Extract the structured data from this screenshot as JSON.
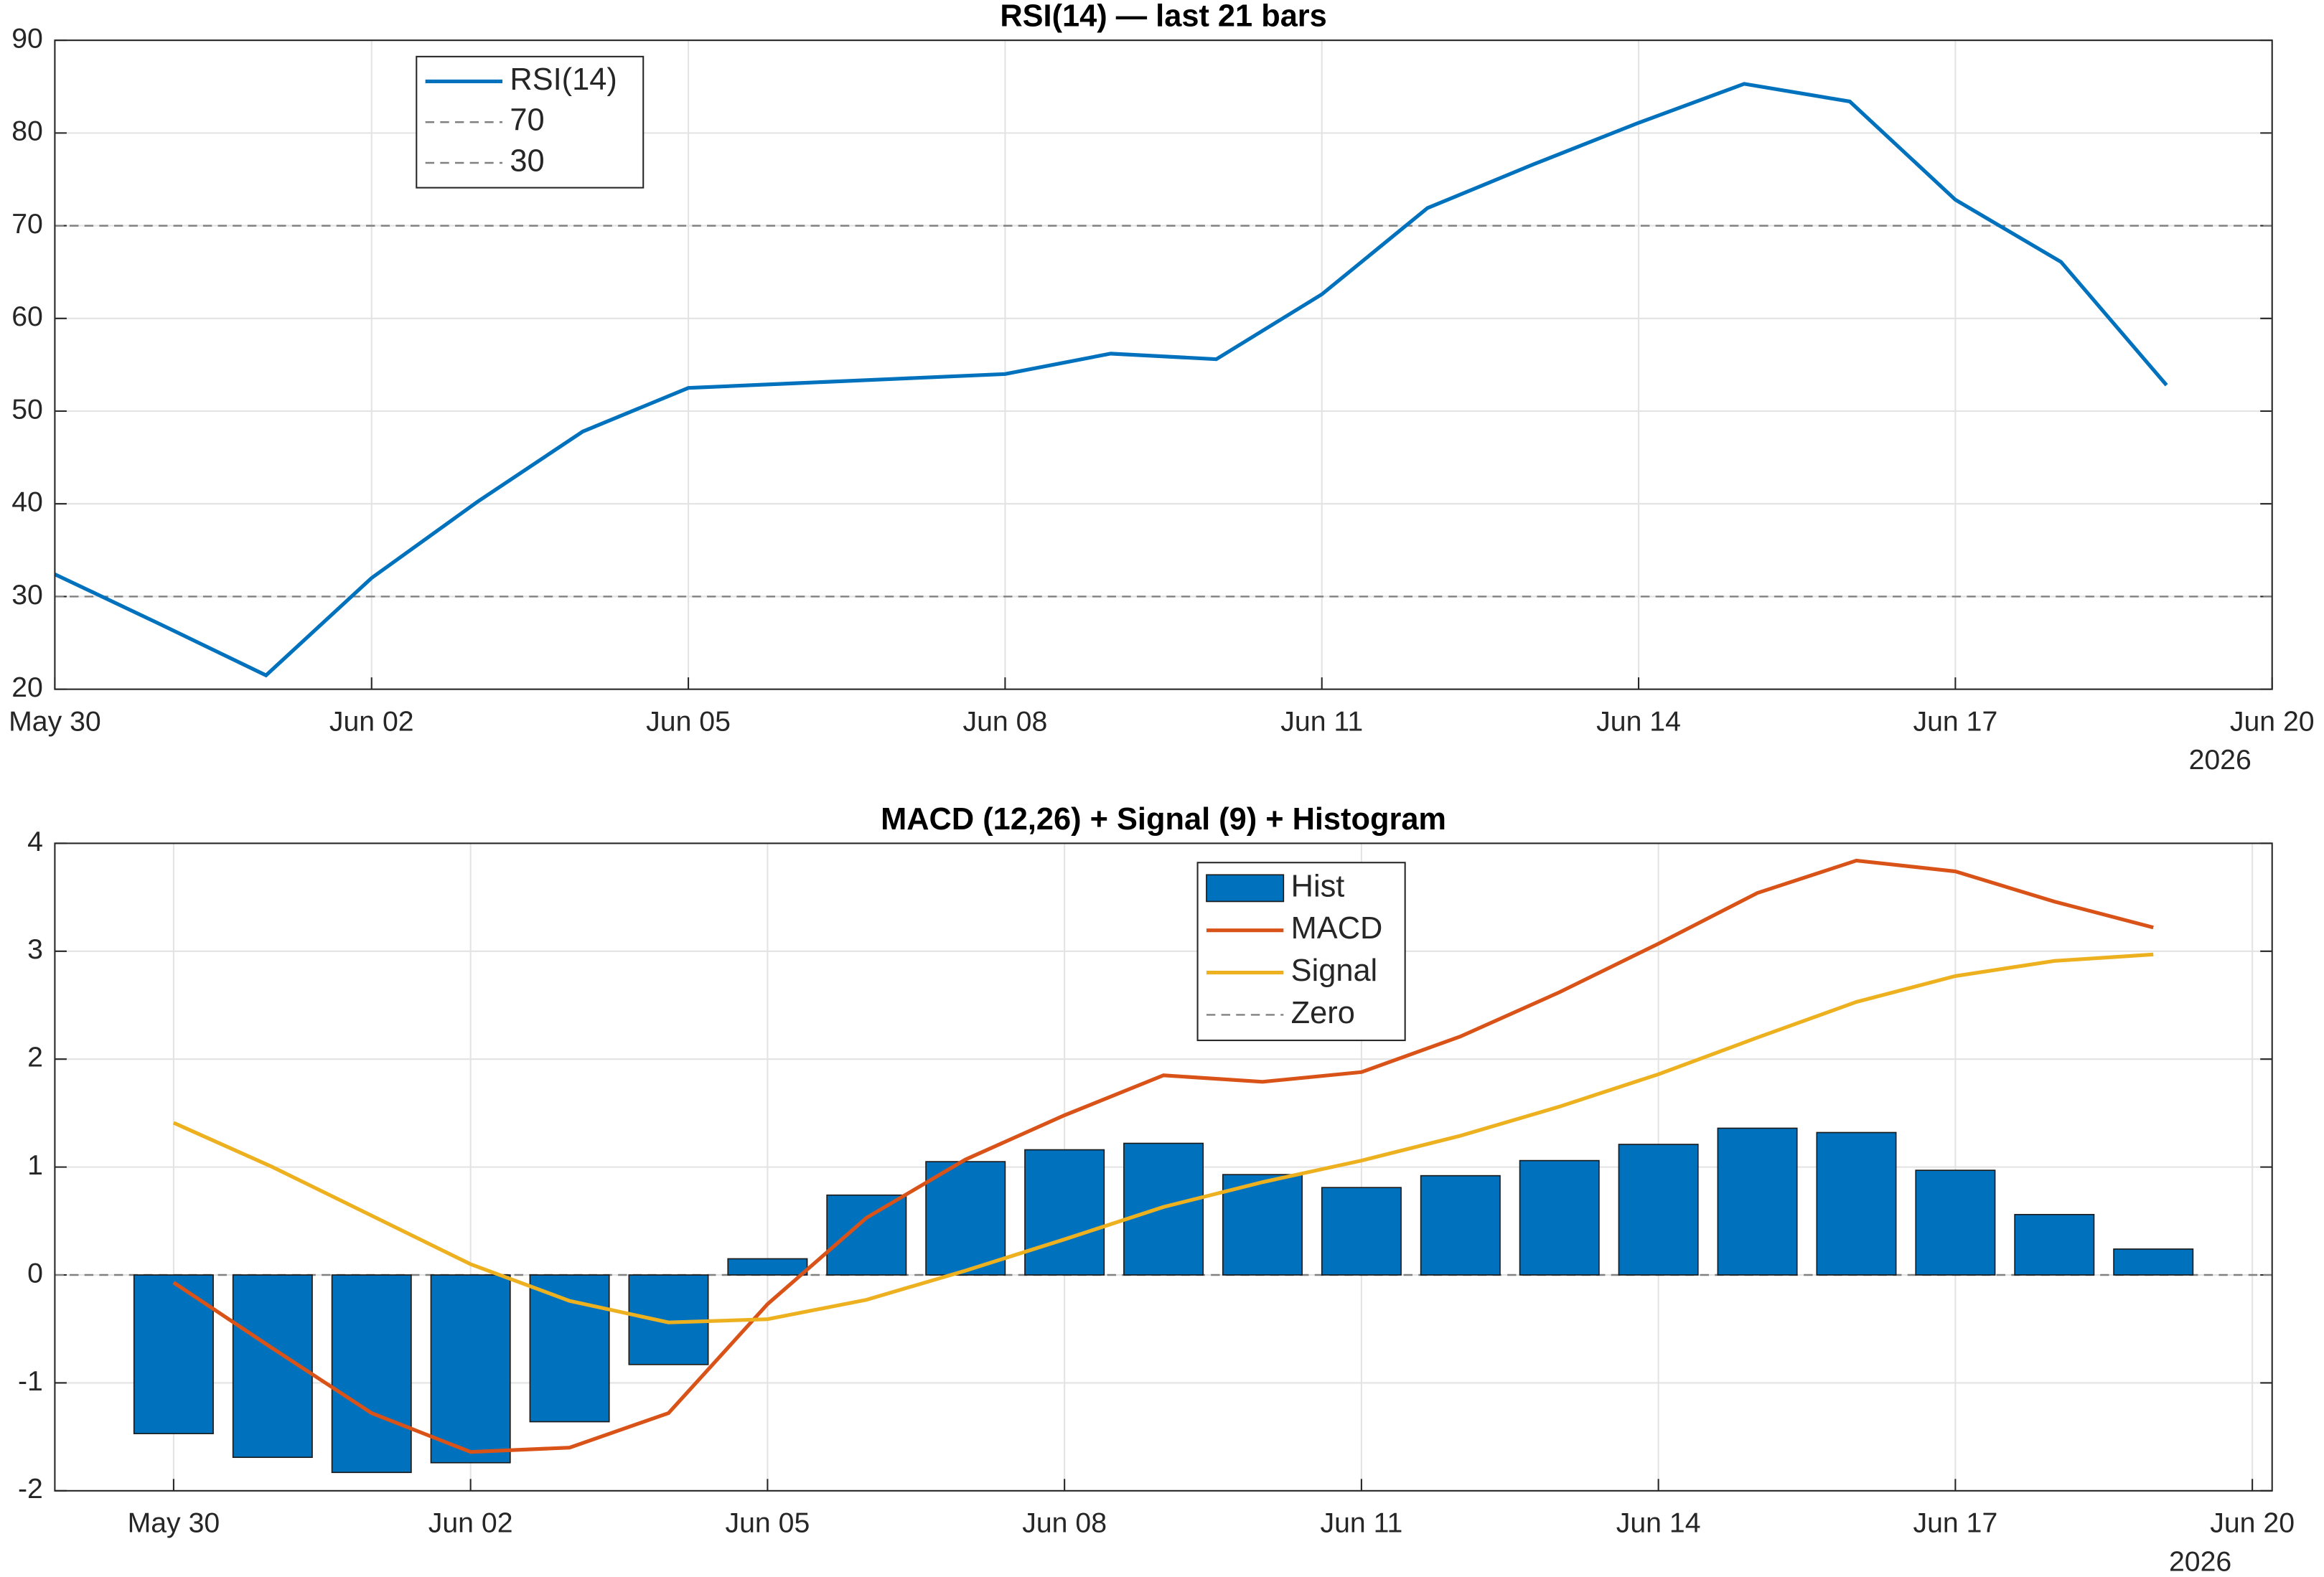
{
  "chart_data": [
    {
      "type": "line",
      "title": "RSI(14) — last 21 bars",
      "x": [
        "2026-05-30",
        "2026-05-31",
        "2026-06-01",
        "2026-06-02",
        "2026-06-03",
        "2026-06-04",
        "2026-06-05",
        "2026-06-06",
        "2026-06-07",
        "2026-06-08",
        "2026-06-09",
        "2026-06-10",
        "2026-06-11",
        "2026-06-12",
        "2026-06-13",
        "2026-06-14",
        "2026-06-15",
        "2026-06-16",
        "2026-06-17",
        "2026-06-18",
        "2026-06-19"
      ],
      "series": [
        {
          "name": "RSI(14)",
          "type": "line",
          "color": "#0072bd",
          "values": [
            32.4,
            27,
            21.5,
            32,
            40.2,
            47.8,
            52.5,
            53,
            53.5,
            54,
            56.2,
            55.6,
            62.6,
            71.9,
            76.6,
            81.1,
            85.3,
            83.4,
            72.8,
            66.1,
            52.8
          ]
        }
      ],
      "hlines": [
        {
          "name": "70",
          "value": 70,
          "color": "#808080"
        },
        {
          "name": "30",
          "value": 30,
          "color": "#808080"
        }
      ],
      "xlim": [
        "2026-05-30",
        "2026-06-20"
      ],
      "xticks": [
        {
          "value": "2026-05-30",
          "label": "May 30"
        },
        {
          "value": "2026-06-02",
          "label": "Jun 02"
        },
        {
          "value": "2026-06-05",
          "label": "Jun 05"
        },
        {
          "value": "2026-06-08",
          "label": "Jun 08"
        },
        {
          "value": "2026-06-11",
          "label": "Jun 11"
        },
        {
          "value": "2026-06-14",
          "label": "Jun 14"
        },
        {
          "value": "2026-06-17",
          "label": "Jun 17"
        },
        {
          "value": "2026-06-20",
          "label": "Jun 20"
        }
      ],
      "x_year_label": "2026",
      "ylim": [
        20,
        90
      ],
      "yticks": [
        20,
        30,
        40,
        50,
        60,
        70,
        80,
        90
      ],
      "grid": true
    },
    {
      "type": "bar",
      "title": "MACD (12,26) + Signal (9) + Histogram",
      "x": [
        "2026-05-30",
        "2026-05-31",
        "2026-06-01",
        "2026-06-02",
        "2026-06-03",
        "2026-06-04",
        "2026-06-05",
        "2026-06-06",
        "2026-06-07",
        "2026-06-08",
        "2026-06-09",
        "2026-06-10",
        "2026-06-11",
        "2026-06-12",
        "2026-06-13",
        "2026-06-14",
        "2026-06-15",
        "2026-06-16",
        "2026-06-17",
        "2026-06-18",
        "2026-06-19"
      ],
      "series": [
        {
          "name": "Hist",
          "type": "bar",
          "color": "#0072bd",
          "values": [
            -1.47,
            -1.69,
            -1.83,
            -1.74,
            -1.36,
            -0.83,
            0.15,
            0.74,
            1.05,
            1.16,
            1.22,
            0.93,
            0.81,
            0.92,
            1.06,
            1.21,
            1.36,
            1.32,
            0.97,
            0.56,
            0.24
          ]
        },
        {
          "name": "MACD",
          "type": "line",
          "color": "#d95319",
          "values": [
            -0.07,
            -0.68,
            -1.28,
            -1.64,
            -1.6,
            -1.28,
            -0.27,
            0.53,
            1.07,
            1.48,
            1.85,
            1.79,
            1.88,
            2.21,
            2.62,
            3.07,
            3.54,
            3.84,
            3.74,
            3.46,
            3.22
          ]
        },
        {
          "name": "Signal",
          "type": "line",
          "color": "#edb120",
          "values": [
            1.41,
            1,
            0.55,
            0.1,
            -0.24,
            -0.44,
            -0.41,
            -0.23,
            0.04,
            0.33,
            0.63,
            0.86,
            1.06,
            1.29,
            1.56,
            1.86,
            2.2,
            2.53,
            2.77,
            2.91,
            2.97
          ]
        }
      ],
      "hlines": [
        {
          "name": "Zero",
          "value": 0,
          "color": "#808080"
        }
      ],
      "xlim": [
        "2026-05-28T19:12",
        "2026-06-20T04:48"
      ],
      "xticks": [
        {
          "value": "2026-05-30",
          "label": "May 30"
        },
        {
          "value": "2026-06-02",
          "label": "Jun 02"
        },
        {
          "value": "2026-06-05",
          "label": "Jun 05"
        },
        {
          "value": "2026-06-08",
          "label": "Jun 08"
        },
        {
          "value": "2026-06-11",
          "label": "Jun 11"
        },
        {
          "value": "2026-06-14",
          "label": "Jun 14"
        },
        {
          "value": "2026-06-17",
          "label": "Jun 17"
        },
        {
          "value": "2026-06-20",
          "label": "Jun 20"
        }
      ],
      "x_year_label": "2026",
      "ylim": [
        -2,
        4
      ],
      "yticks": [
        -2,
        -1,
        0,
        1,
        2,
        3,
        4
      ],
      "grid": true
    }
  ]
}
